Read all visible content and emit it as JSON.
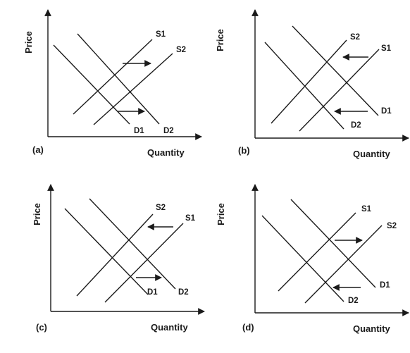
{
  "axes": {
    "y_label": "Price",
    "x_label": "Quantity"
  },
  "panels": [
    {
      "label": "(a)",
      "curves": [
        "S1",
        "S2",
        "D1",
        "D2"
      ],
      "arrows": [
        "right",
        "right"
      ]
    },
    {
      "label": "(b)",
      "curves": [
        "S2",
        "S1",
        "D1",
        "D2"
      ],
      "arrows": [
        "left",
        "left"
      ]
    },
    {
      "label": "(c)",
      "curves": [
        "S2",
        "S1",
        "D1",
        "D2"
      ],
      "arrows": [
        "left",
        "right"
      ]
    },
    {
      "label": "(d)",
      "curves": [
        "S1",
        "S2",
        "D1",
        "D2"
      ],
      "arrows": [
        "right",
        "left"
      ]
    }
  ],
  "colors": {
    "line": "#1a1a1a",
    "background": "#ffffff"
  }
}
